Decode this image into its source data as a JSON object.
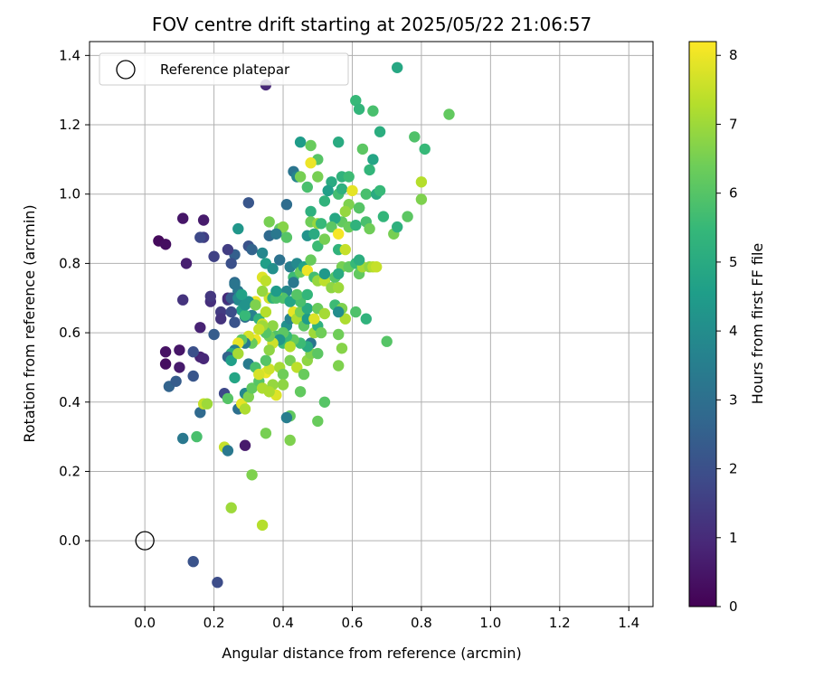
{
  "chart_data": {
    "type": "scatter",
    "title": "FOV centre drift starting at 2025/05/22 21:06:57",
    "xlabel": "Angular distance from reference (arcmin)",
    "ylabel": "Rotation from reference (arcmin)",
    "xlim": [
      -0.16,
      1.47
    ],
    "ylim": [
      -0.19,
      1.44
    ],
    "xticks": [
      "0.0",
      "0.2",
      "0.4",
      "0.6",
      "0.8",
      "1.0",
      "1.2",
      "1.4"
    ],
    "yticks": [
      "0.0",
      "0.2",
      "0.4",
      "0.6",
      "0.8",
      "1.0",
      "1.2",
      "1.4"
    ],
    "grid": true,
    "legend": {
      "placement": "top-left",
      "entries": [
        {
          "label": "Reference platepar",
          "marker": "open-circle"
        }
      ]
    },
    "colorbar": {
      "label": "Hours from first FF file",
      "range": [
        0,
        8.2
      ],
      "ticks": [
        "0",
        "1",
        "2",
        "3",
        "4",
        "5",
        "6",
        "7",
        "8"
      ],
      "colormap": "viridis"
    },
    "reference_point": {
      "x": 0.0,
      "y": 0.0
    },
    "points": [
      [
        0.04,
        0.865,
        0.2
      ],
      [
        0.06,
        0.855,
        0.3
      ],
      [
        0.11,
        0.93,
        0.5
      ],
      [
        0.17,
        0.925,
        0.6
      ],
      [
        0.12,
        0.8,
        0.7
      ],
      [
        0.06,
        0.545,
        0.4
      ],
      [
        0.06,
        0.51,
        0.3
      ],
      [
        0.1,
        0.55,
        0.5
      ],
      [
        0.1,
        0.5,
        0.6
      ],
      [
        0.16,
        0.53,
        0.8
      ],
      [
        0.17,
        0.525,
        0.9
      ],
      [
        0.16,
        0.615,
        0.8
      ],
      [
        0.11,
        0.695,
        1.2
      ],
      [
        0.19,
        0.69,
        1.1
      ],
      [
        0.19,
        0.705,
        1.3
      ],
      [
        0.17,
        0.875,
        1.5
      ],
      [
        0.16,
        0.875,
        1.8
      ],
      [
        0.2,
        0.82,
        1.6
      ],
      [
        0.22,
        0.66,
        1.4
      ],
      [
        0.22,
        0.64,
        1.2
      ],
      [
        0.24,
        0.695,
        1.5
      ],
      [
        0.24,
        0.7,
        1.0
      ],
      [
        0.14,
        0.545,
        2.0
      ],
      [
        0.14,
        0.475,
        2.2
      ],
      [
        0.07,
        0.445,
        2.6
      ],
      [
        0.09,
        0.46,
        2.4
      ],
      [
        0.16,
        0.37,
        2.8
      ],
      [
        0.11,
        0.295,
        3.3
      ],
      [
        0.15,
        0.3,
        5.8
      ],
      [
        0.23,
        0.425,
        1.8
      ],
      [
        0.29,
        0.275,
        0.6
      ],
      [
        0.14,
        -0.06,
        2.1
      ],
      [
        0.21,
        -0.12,
        1.9
      ],
      [
        0.35,
        1.315,
        0.9
      ],
      [
        0.73,
        1.365,
        4.9
      ],
      [
        0.61,
        1.27,
        5.5
      ],
      [
        0.62,
        1.245,
        5.4
      ],
      [
        0.66,
        1.24,
        5.8
      ],
      [
        0.88,
        1.23,
        6.2
      ],
      [
        0.45,
        1.15,
        4.5
      ],
      [
        0.56,
        1.15,
        5.0
      ],
      [
        0.48,
        1.14,
        6.3
      ],
      [
        0.5,
        1.1,
        6.0
      ],
      [
        0.63,
        1.13,
        6.1
      ],
      [
        0.78,
        1.165,
        5.9
      ],
      [
        0.81,
        1.13,
        5.5
      ],
      [
        0.68,
        1.18,
        5.1
      ],
      [
        0.66,
        1.1,
        4.8
      ],
      [
        0.43,
        1.065,
        3.2
      ],
      [
        0.44,
        1.05,
        3.7
      ],
      [
        0.45,
        1.05,
        6.5
      ],
      [
        0.41,
        0.97,
        2.9
      ],
      [
        0.3,
        0.975,
        2.2
      ],
      [
        0.47,
        1.02,
        5.8
      ],
      [
        0.48,
        1.09,
        8.0
      ],
      [
        0.5,
        1.05,
        6.5
      ],
      [
        0.54,
        1.035,
        5.0
      ],
      [
        0.57,
        1.05,
        5.3
      ],
      [
        0.59,
        1.05,
        5.6
      ],
      [
        0.56,
        1.0,
        5.7
      ],
      [
        0.57,
        1.015,
        5.2
      ],
      [
        0.6,
        1.01,
        7.9
      ],
      [
        0.64,
        1.0,
        5.8
      ],
      [
        0.65,
        1.07,
        5.4
      ],
      [
        0.67,
        1.0,
        5.0
      ],
      [
        0.68,
        1.01,
        5.5
      ],
      [
        0.62,
        0.96,
        5.9
      ],
      [
        0.59,
        0.97,
        6.6
      ],
      [
        0.58,
        0.95,
        6.9
      ],
      [
        0.57,
        0.92,
        6.2
      ],
      [
        0.55,
        0.93,
        4.9
      ],
      [
        0.52,
        0.98,
        5.3
      ],
      [
        0.53,
        1.01,
        4.6
      ],
      [
        0.48,
        0.95,
        5.2
      ],
      [
        0.48,
        0.92,
        6.4
      ],
      [
        0.5,
        0.915,
        6.9
      ],
      [
        0.47,
        0.88,
        4.2
      ],
      [
        0.49,
        0.885,
        5.0
      ],
      [
        0.5,
        0.85,
        5.6
      ],
      [
        0.52,
        0.87,
        6.5
      ],
      [
        0.51,
        0.915,
        5.5
      ],
      [
        0.54,
        0.905,
        6.1
      ],
      [
        0.56,
        0.885,
        8.1
      ],
      [
        0.56,
        0.84,
        5.3
      ],
      [
        0.58,
        0.84,
        7.5
      ],
      [
        0.59,
        0.905,
        6.3
      ],
      [
        0.61,
        0.91,
        5.3
      ],
      [
        0.62,
        0.96,
        6.0
      ],
      [
        0.64,
        0.92,
        5.8
      ],
      [
        0.65,
        0.9,
        6.4
      ],
      [
        0.69,
        0.935,
        5.4
      ],
      [
        0.72,
        0.885,
        6.5
      ],
      [
        0.73,
        0.905,
        5.2
      ],
      [
        0.76,
        0.935,
        6.1
      ],
      [
        0.8,
        1.035,
        7.3
      ],
      [
        0.8,
        0.985,
        6.6
      ],
      [
        0.39,
        0.9,
        6.2
      ],
      [
        0.36,
        0.92,
        6.5
      ],
      [
        0.4,
        0.905,
        6.7
      ],
      [
        0.41,
        0.875,
        6.0
      ],
      [
        0.36,
        0.88,
        2.8
      ],
      [
        0.38,
        0.885,
        3.3
      ],
      [
        0.34,
        0.83,
        3.8
      ],
      [
        0.35,
        0.8,
        4.6
      ],
      [
        0.37,
        0.785,
        4.1
      ],
      [
        0.39,
        0.81,
        3.1
      ],
      [
        0.42,
        0.79,
        3.5
      ],
      [
        0.43,
        0.76,
        5.6
      ],
      [
        0.44,
        0.8,
        3.9
      ],
      [
        0.45,
        0.775,
        6.3
      ],
      [
        0.46,
        0.79,
        4.7
      ],
      [
        0.47,
        0.78,
        8.0
      ],
      [
        0.48,
        0.81,
        6.3
      ],
      [
        0.49,
        0.76,
        5.7
      ],
      [
        0.5,
        0.75,
        6.9
      ],
      [
        0.52,
        0.75,
        7.4
      ],
      [
        0.54,
        0.73,
        6.8
      ],
      [
        0.55,
        0.76,
        6.0
      ],
      [
        0.56,
        0.73,
        7.0
      ],
      [
        0.57,
        0.79,
        6.5
      ],
      [
        0.59,
        0.79,
        6.2
      ],
      [
        0.61,
        0.8,
        5.5
      ],
      [
        0.62,
        0.77,
        6.2
      ],
      [
        0.63,
        0.79,
        7.1
      ],
      [
        0.65,
        0.79,
        6.8
      ],
      [
        0.66,
        0.79,
        7.3
      ],
      [
        0.67,
        0.79,
        7.5
      ],
      [
        0.62,
        0.81,
        5.1
      ],
      [
        0.56,
        0.77,
        5.0
      ],
      [
        0.52,
        0.77,
        4.4
      ],
      [
        0.43,
        0.745,
        3.3
      ],
      [
        0.41,
        0.72,
        3.8
      ],
      [
        0.4,
        0.7,
        5.9
      ],
      [
        0.38,
        0.715,
        7.4
      ],
      [
        0.36,
        0.7,
        7.6
      ],
      [
        0.34,
        0.76,
        7.8
      ],
      [
        0.32,
        0.69,
        8.0
      ],
      [
        0.3,
        0.69,
        4.3
      ],
      [
        0.28,
        0.665,
        4.7
      ],
      [
        0.27,
        0.695,
        3.8
      ],
      [
        0.27,
        0.72,
        3.3
      ],
      [
        0.26,
        0.745,
        2.8
      ],
      [
        0.25,
        0.7,
        2.3
      ],
      [
        0.25,
        0.66,
        1.9
      ],
      [
        0.26,
        0.63,
        2.1
      ],
      [
        0.29,
        0.645,
        3.0
      ],
      [
        0.31,
        0.65,
        3.6
      ],
      [
        0.33,
        0.64,
        5.3
      ],
      [
        0.35,
        0.66,
        7.3
      ],
      [
        0.34,
        0.625,
        7.6
      ],
      [
        0.37,
        0.62,
        6.8
      ],
      [
        0.38,
        0.59,
        5.9
      ],
      [
        0.4,
        0.57,
        5.5
      ],
      [
        0.41,
        0.62,
        4.1
      ],
      [
        0.42,
        0.64,
        3.7
      ],
      [
        0.43,
        0.66,
        7.9
      ],
      [
        0.44,
        0.64,
        7.2
      ],
      [
        0.45,
        0.66,
        6.5
      ],
      [
        0.46,
        0.62,
        6.1
      ],
      [
        0.47,
        0.64,
        4.5
      ],
      [
        0.48,
        0.57,
        3.2
      ],
      [
        0.49,
        0.6,
        7.0
      ],
      [
        0.5,
        0.62,
        5.2
      ],
      [
        0.51,
        0.6,
        6.4
      ],
      [
        0.49,
        0.64,
        7.8
      ],
      [
        0.47,
        0.67,
        5.0
      ],
      [
        0.45,
        0.69,
        5.8
      ],
      [
        0.42,
        0.69,
        4.8
      ],
      [
        0.44,
        0.71,
        6.0
      ],
      [
        0.47,
        0.71,
        5.4
      ],
      [
        0.5,
        0.67,
        6.3
      ],
      [
        0.52,
        0.655,
        7.1
      ],
      [
        0.55,
        0.68,
        5.6
      ],
      [
        0.57,
        0.67,
        6.6
      ],
      [
        0.58,
        0.64,
        7.2
      ],
      [
        0.56,
        0.66,
        4.0
      ],
      [
        0.61,
        0.66,
        5.9
      ],
      [
        0.64,
        0.64,
        5.3
      ],
      [
        0.7,
        0.575,
        6.0
      ],
      [
        0.56,
        0.595,
        6.4
      ],
      [
        0.57,
        0.555,
        6.7
      ],
      [
        0.56,
        0.505,
        6.6
      ],
      [
        0.52,
        0.4,
        6.0
      ],
      [
        0.5,
        0.345,
        6.3
      ],
      [
        0.42,
        0.36,
        6.2
      ],
      [
        0.41,
        0.355,
        3.5
      ],
      [
        0.42,
        0.29,
        6.6
      ],
      [
        0.35,
        0.31,
        6.5
      ],
      [
        0.31,
        0.19,
        6.6
      ],
      [
        0.34,
        0.045,
        7.3
      ],
      [
        0.25,
        0.095,
        7.0
      ],
      [
        0.23,
        0.27,
        7.5
      ],
      [
        0.24,
        0.26,
        3.3
      ],
      [
        0.24,
        0.41,
        6.0
      ],
      [
        0.26,
        0.47,
        4.8
      ],
      [
        0.27,
        0.38,
        3.0
      ],
      [
        0.28,
        0.395,
        7.9
      ],
      [
        0.29,
        0.38,
        7.2
      ],
      [
        0.29,
        0.425,
        3.8
      ],
      [
        0.3,
        0.415,
        6.6
      ],
      [
        0.31,
        0.44,
        6.2
      ],
      [
        0.3,
        0.51,
        3.4
      ],
      [
        0.32,
        0.5,
        5.8
      ],
      [
        0.33,
        0.46,
        6.0
      ],
      [
        0.34,
        0.44,
        7.2
      ],
      [
        0.35,
        0.485,
        8.0
      ],
      [
        0.36,
        0.495,
        7.6
      ],
      [
        0.37,
        0.45,
        6.9
      ],
      [
        0.38,
        0.42,
        7.8
      ],
      [
        0.36,
        0.43,
        7.2
      ],
      [
        0.39,
        0.5,
        7.1
      ],
      [
        0.4,
        0.48,
        6.4
      ],
      [
        0.4,
        0.45,
        6.8
      ],
      [
        0.42,
        0.52,
        6.5
      ],
      [
        0.44,
        0.5,
        7.4
      ],
      [
        0.45,
        0.43,
        6.2
      ],
      [
        0.46,
        0.48,
        6.3
      ],
      [
        0.47,
        0.52,
        6.8
      ],
      [
        0.48,
        0.54,
        6.6
      ],
      [
        0.5,
        0.54,
        6.1
      ],
      [
        0.47,
        0.56,
        5.0
      ],
      [
        0.45,
        0.57,
        5.6
      ],
      [
        0.43,
        0.58,
        6.2
      ],
      [
        0.42,
        0.56,
        7.3
      ],
      [
        0.41,
        0.59,
        5.5
      ],
      [
        0.4,
        0.6,
        6.1
      ],
      [
        0.39,
        0.58,
        4.3
      ],
      [
        0.37,
        0.57,
        7.6
      ],
      [
        0.36,
        0.59,
        6.4
      ],
      [
        0.35,
        0.6,
        6.0
      ],
      [
        0.34,
        0.62,
        7.0
      ],
      [
        0.33,
        0.61,
        7.5
      ],
      [
        0.32,
        0.58,
        8.0
      ],
      [
        0.31,
        0.57,
        6.3
      ],
      [
        0.3,
        0.59,
        7.7
      ],
      [
        0.29,
        0.57,
        3.4
      ],
      [
        0.28,
        0.58,
        6.1
      ],
      [
        0.27,
        0.57,
        7.9
      ],
      [
        0.26,
        0.55,
        3.6
      ],
      [
        0.25,
        0.54,
        5.0
      ],
      [
        0.24,
        0.53,
        2.6
      ],
      [
        0.25,
        0.52,
        4.6
      ],
      [
        0.27,
        0.54,
        7.1
      ],
      [
        0.17,
        0.395,
        7.5
      ],
      [
        0.18,
        0.395,
        7.0
      ],
      [
        0.2,
        0.595,
        2.4
      ],
      [
        0.26,
        0.825,
        2.5
      ],
      [
        0.24,
        0.84,
        1.5
      ],
      [
        0.25,
        0.8,
        2.0
      ],
      [
        0.26,
        0.74,
        3.2
      ],
      [
        0.27,
        0.7,
        3.9
      ],
      [
        0.28,
        0.71,
        4.7
      ],
      [
        0.29,
        0.65,
        5.5
      ],
      [
        0.29,
        0.68,
        4.2
      ],
      [
        0.32,
        0.68,
        6.6
      ],
      [
        0.34,
        0.72,
        6.9
      ],
      [
        0.37,
        0.7,
        5.3
      ],
      [
        0.38,
        0.7,
        5.8
      ],
      [
        0.27,
        0.9,
        4.3
      ],
      [
        0.3,
        0.85,
        2.1
      ],
      [
        0.31,
        0.84,
        2.6
      ],
      [
        0.35,
        0.75,
        7.4
      ],
      [
        0.38,
        0.72,
        4.5
      ],
      [
        0.33,
        0.48,
        7.7
      ],
      [
        0.35,
        0.52,
        6.0
      ],
      [
        0.36,
        0.55,
        6.8
      ]
    ]
  }
}
